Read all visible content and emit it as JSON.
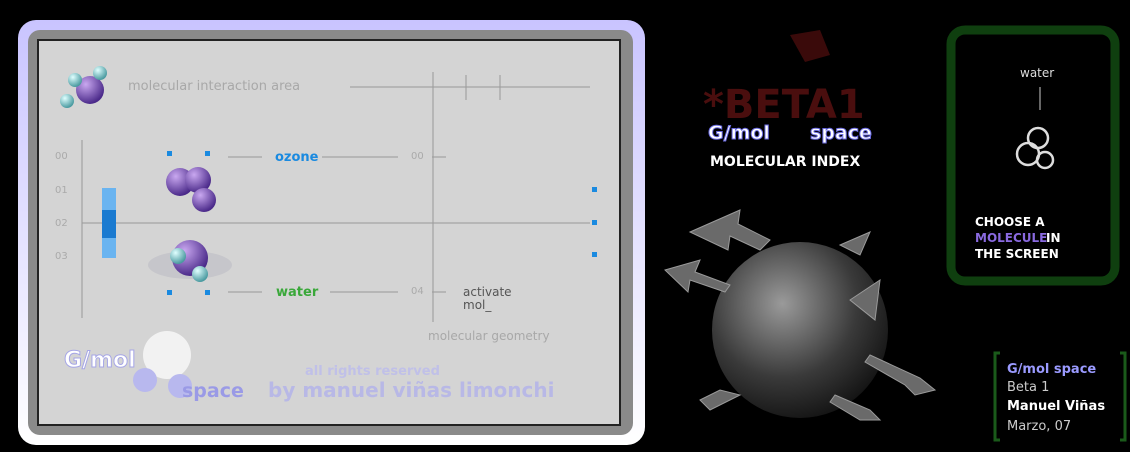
{
  "panel": {
    "title": "molecular interaction area",
    "row_labels": [
      "00",
      "01",
      "02",
      "03"
    ],
    "molecules": [
      {
        "name": "ozone",
        "index": "00"
      },
      {
        "name": "water",
        "index": "04"
      }
    ],
    "action": [
      "activate",
      "mol_"
    ],
    "axis_label": "molecular geometry",
    "logo": {
      "brand": "G/mol",
      "space": "space",
      "rights": "all rights reserved",
      "author": "by manuel viñas limonchi"
    }
  },
  "header": {
    "beta": "*BETA1",
    "brand": "G/mol",
    "space": "space",
    "subtitle": "MOLECULAR INDEX"
  },
  "selector": {
    "molecule": "water",
    "instruction": [
      "CHOOSE A",
      "MOLECULE",
      "IN",
      "THE SCREEN"
    ]
  },
  "credits": [
    "G/mol space",
    "Beta 1",
    "Manuel Viñas",
    "Marzo, 07"
  ]
}
